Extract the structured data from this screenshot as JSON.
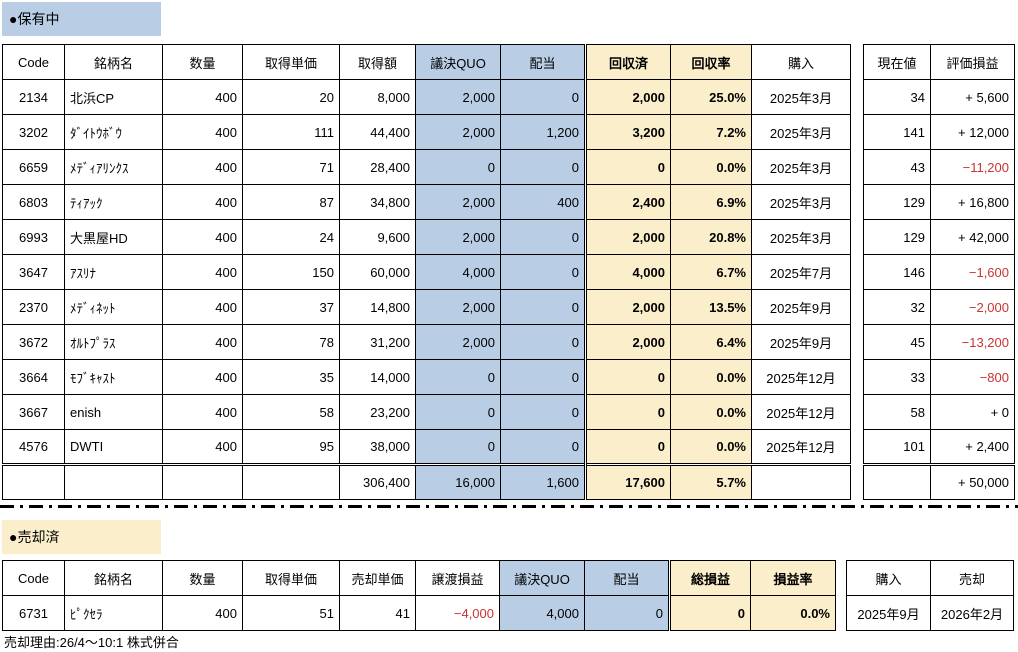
{
  "colors": {
    "highlight_blue": "#B9CDE4",
    "highlight_yellow": "#FBEECB",
    "negative_red": "#CC3333"
  },
  "holding": {
    "title": "●保有中",
    "headers": [
      "Code",
      "銘柄名",
      "数量",
      "取得単価",
      "取得額",
      "議決QUO",
      "配当",
      "回収済",
      "回収率",
      "購入"
    ],
    "rows": [
      {
        "code": "2134",
        "name": "北浜CP",
        "qty": "400",
        "unit_cost": "20",
        "cost": "8,000",
        "quo": "2,000",
        "dividend": "0",
        "recovered": "2,000",
        "recovery_rate": "25.0%",
        "purchase": "2025年3月"
      },
      {
        "code": "3202",
        "name": "ﾀﾞｲﾄｳﾎﾞｳ",
        "qty": "400",
        "unit_cost": "111",
        "cost": "44,400",
        "quo": "2,000",
        "dividend": "1,200",
        "recovered": "3,200",
        "recovery_rate": "7.2%",
        "purchase": "2025年3月"
      },
      {
        "code": "6659",
        "name": "ﾒﾃﾞｨｱﾘﾝｸｽ",
        "qty": "400",
        "unit_cost": "71",
        "cost": "28,400",
        "quo": "0",
        "dividend": "0",
        "recovered": "0",
        "recovery_rate": "0.0%",
        "purchase": "2025年3月"
      },
      {
        "code": "6803",
        "name": "ﾃｨｱｯｸ",
        "qty": "400",
        "unit_cost": "87",
        "cost": "34,800",
        "quo": "2,000",
        "dividend": "400",
        "recovered": "2,400",
        "recovery_rate": "6.9%",
        "purchase": "2025年3月"
      },
      {
        "code": "6993",
        "name": "大黒屋HD",
        "qty": "400",
        "unit_cost": "24",
        "cost": "9,600",
        "quo": "2,000",
        "dividend": "0",
        "recovered": "2,000",
        "recovery_rate": "20.8%",
        "purchase": "2025年3月"
      },
      {
        "code": "3647",
        "name": "ｱｽﾘﾅ",
        "qty": "400",
        "unit_cost": "150",
        "cost": "60,000",
        "quo": "4,000",
        "dividend": "0",
        "recovered": "4,000",
        "recovery_rate": "6.7%",
        "purchase": "2025年7月"
      },
      {
        "code": "2370",
        "name": "ﾒﾃﾞｨﾈｯﾄ",
        "qty": "400",
        "unit_cost": "37",
        "cost": "14,800",
        "quo": "2,000",
        "dividend": "0",
        "recovered": "2,000",
        "recovery_rate": "13.5%",
        "purchase": "2025年9月"
      },
      {
        "code": "3672",
        "name": "ｵﾙﾄﾌﾟﾗｽ",
        "qty": "400",
        "unit_cost": "78",
        "cost": "31,200",
        "quo": "2,000",
        "dividend": "0",
        "recovered": "2,000",
        "recovery_rate": "6.4%",
        "purchase": "2025年9月"
      },
      {
        "code": "3664",
        "name": "ﾓﾌﾞｷｬｽﾄ",
        "qty": "400",
        "unit_cost": "35",
        "cost": "14,000",
        "quo": "0",
        "dividend": "0",
        "recovered": "0",
        "recovery_rate": "0.0%",
        "purchase": "2025年12月"
      },
      {
        "code": "3667",
        "name": "enish",
        "qty": "400",
        "unit_cost": "58",
        "cost": "23,200",
        "quo": "0",
        "dividend": "0",
        "recovered": "0",
        "recovery_rate": "0.0%",
        "purchase": "2025年12月"
      },
      {
        "code": "4576",
        "name": "DWTI",
        "qty": "400",
        "unit_cost": "95",
        "cost": "38,000",
        "quo": "0",
        "dividend": "0",
        "recovered": "0",
        "recovery_rate": "0.0%",
        "purchase": "2025年12月"
      }
    ],
    "total": {
      "code": "",
      "name": "",
      "qty": "",
      "unit_cost": "",
      "cost": "306,400",
      "quo": "16,000",
      "dividend": "1,600",
      "recovered": "17,600",
      "recovery_rate": "5.7%",
      "purchase": ""
    },
    "side": {
      "headers": [
        "現在値",
        "評価損益"
      ],
      "rows": [
        {
          "current": "34",
          "pl": "+ 5,600"
        },
        {
          "current": "141",
          "pl": "+ 12,000"
        },
        {
          "current": "43",
          "pl": "−11,200"
        },
        {
          "current": "129",
          "pl": "+ 16,800"
        },
        {
          "current": "129",
          "pl": "+ 42,000"
        },
        {
          "current": "146",
          "pl": "−1,600"
        },
        {
          "current": "32",
          "pl": "−2,000"
        },
        {
          "current": "45",
          "pl": "−13,200"
        },
        {
          "current": "33",
          "pl": "−800"
        },
        {
          "current": "58",
          "pl": "+ 0"
        },
        {
          "current": "101",
          "pl": "+ 2,400"
        }
      ],
      "total": {
        "current": "",
        "pl": "+ 50,000"
      }
    }
  },
  "sold": {
    "title": "●売却済",
    "headers": [
      "Code",
      "銘柄名",
      "数量",
      "取得単価",
      "売却単価",
      "譲渡損益",
      "議決QUO",
      "配当",
      "総損益",
      "損益率"
    ],
    "rows": [
      {
        "code": "6731",
        "name": "ﾋﾟｸｾﾗ",
        "qty": "400",
        "unit_cost": "51",
        "sell_price": "41",
        "transfer_pl": "−4,000",
        "quo": "4,000",
        "dividend": "0",
        "total_pl": "0",
        "pl_rate": "0.0%"
      }
    ],
    "side": {
      "headers": [
        "購入",
        "売却"
      ],
      "rows": [
        {
          "purchase": "2025年9月",
          "sale": "2026年2月"
        }
      ]
    },
    "note": "売却理由:26/4～10:1 株式併合"
  }
}
